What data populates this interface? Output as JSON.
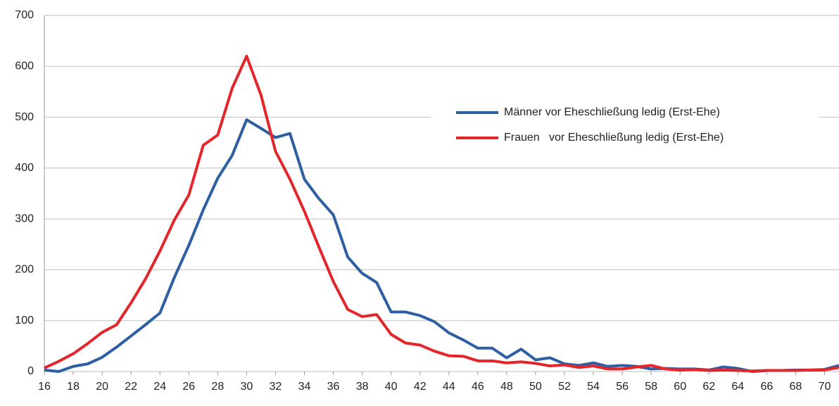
{
  "chart_data": {
    "type": "line",
    "x": [
      16,
      17,
      18,
      19,
      20,
      21,
      22,
      23,
      24,
      25,
      26,
      27,
      28,
      29,
      30,
      31,
      32,
      33,
      34,
      35,
      36,
      37,
      38,
      39,
      40,
      41,
      42,
      43,
      44,
      45,
      46,
      47,
      48,
      49,
      50,
      51,
      52,
      53,
      54,
      55,
      56,
      57,
      58,
      59,
      60,
      61,
      62,
      63,
      64,
      65,
      66,
      67,
      68,
      69,
      70,
      71
    ],
    "series": [
      {
        "name": "Männer vor Eheschließung ledig (Erst-Ehe)",
        "color": "#2e5fa3",
        "values": [
          3,
          0,
          10,
          15,
          28,
          48,
          70,
          92,
          115,
          185,
          248,
          318,
          380,
          425,
          495,
          478,
          460,
          468,
          378,
          340,
          308,
          225,
          193,
          175,
          117,
          117,
          110,
          98,
          76,
          62,
          46,
          46,
          27,
          44,
          23,
          27,
          15,
          12,
          17,
          10,
          12,
          10,
          5,
          6,
          5,
          5,
          3,
          9,
          6,
          0,
          2,
          2,
          3,
          3,
          4,
          12
        ]
      },
      {
        "name": "Frauen   vor Eheschließung ledig (Erst-Ehe)",
        "color": "#e3262a",
        "values": [
          7,
          20,
          35,
          55,
          77,
          92,
          135,
          182,
          237,
          298,
          347,
          445,
          465,
          557,
          620,
          543,
          433,
          378,
          315,
          245,
          177,
          122,
          108,
          112,
          73,
          56,
          52,
          40,
          31,
          30,
          21,
          21,
          17,
          19,
          16,
          11,
          13,
          8,
          11,
          5,
          5,
          9,
          12,
          5,
          3,
          4,
          2,
          3,
          2,
          1,
          2,
          2,
          2,
          3,
          3,
          8
        ]
      }
    ],
    "xlim": [
      16,
      71
    ],
    "xticks": [
      16,
      18,
      20,
      22,
      24,
      26,
      28,
      30,
      32,
      34,
      36,
      38,
      40,
      42,
      44,
      46,
      48,
      50,
      52,
      54,
      56,
      58,
      60,
      62,
      64,
      66,
      68,
      70
    ],
    "ylim": [
      0,
      700
    ],
    "yticks": [
      0,
      100,
      200,
      300,
      400,
      500,
      600,
      700
    ],
    "grid": true
  }
}
